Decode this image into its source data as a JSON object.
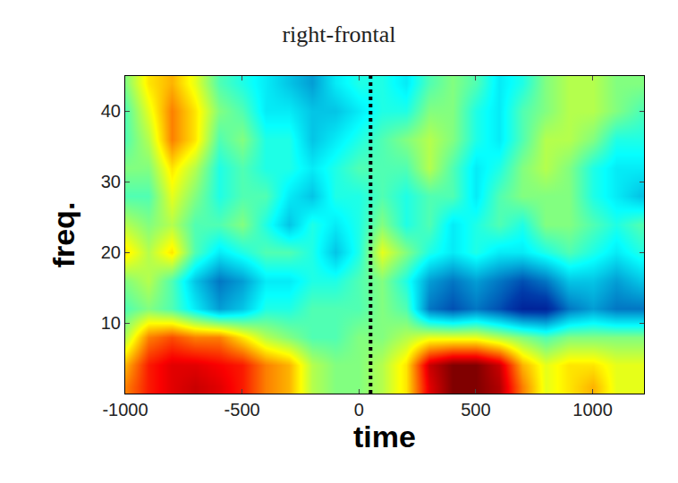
{
  "chart_data": {
    "type": "heatmap",
    "title": "right-frontal",
    "x_label": "time",
    "y_label": "freq.",
    "x": [
      -1000,
      -900,
      -800,
      -700,
      -600,
      -500,
      -400,
      -300,
      -200,
      -100,
      0,
      100,
      200,
      300,
      400,
      500,
      600,
      700,
      800,
      900,
      1000,
      1100,
      1200
    ],
    "y": [
      1,
      4,
      8,
      12,
      16,
      20,
      24,
      28,
      32,
      36,
      40,
      44
    ],
    "z": [
      [
        0.5,
        0.7,
        0.8,
        0.85,
        0.8,
        0.7,
        0.5,
        0.4,
        0.1,
        0,
        0,
        0.1,
        0.3,
        0.8,
        1,
        1,
        0.9,
        0.5,
        0.2,
        0.3,
        0.4,
        0.2,
        0.2
      ],
      [
        0.4,
        0.7,
        0.8,
        0.8,
        0.75,
        0.7,
        0.5,
        0.4,
        0.1,
        0,
        0,
        0.1,
        0.3,
        0.85,
        1,
        1,
        0.85,
        0.4,
        0.2,
        0.3,
        0.3,
        0.2,
        0.2
      ],
      [
        0.1,
        0.5,
        0.6,
        0.5,
        0.5,
        0.3,
        0.1,
        0,
        -0.1,
        -0.1,
        0,
        0,
        0.1,
        0.2,
        0.2,
        0.2,
        0.1,
        0,
        -0.1,
        0,
        0,
        0,
        0
      ],
      [
        -0.1,
        0,
        -0.1,
        -0.3,
        -0.5,
        -0.4,
        -0.2,
        -0.2,
        -0.1,
        -0.1,
        -0.1,
        0,
        -0.1,
        -0.6,
        -0.7,
        -0.6,
        -0.7,
        -0.85,
        -0.85,
        -0.6,
        -0.5,
        -0.6,
        -0.6
      ],
      [
        0,
        0.1,
        -0.1,
        -0.4,
        -0.6,
        -0.5,
        -0.3,
        -0.3,
        -0.2,
        -0.2,
        -0.1,
        0,
        -0.2,
        -0.5,
        -0.6,
        -0.5,
        -0.6,
        -0.7,
        -0.6,
        -0.4,
        -0.4,
        -0.5,
        -0.4
      ],
      [
        0.3,
        0.1,
        0.3,
        -0.1,
        -0.3,
        -0.2,
        -0.1,
        -0.1,
        -0.2,
        -0.4,
        -0.2,
        0.2,
        0,
        -0.2,
        -0.3,
        -0.2,
        -0.3,
        -0.3,
        -0.2,
        -0.1,
        -0.2,
        -0.3,
        -0.2
      ],
      [
        0.1,
        0,
        0.1,
        -0.1,
        -0.1,
        0,
        -0.2,
        -0.4,
        -0.2,
        -0.3,
        -0.2,
        0,
        -0.2,
        -0.1,
        -0.3,
        -0.2,
        -0.1,
        -0.2,
        0,
        0,
        -0.1,
        -0.2,
        -0.1
      ],
      [
        -0.1,
        -0.1,
        0.2,
        0,
        -0.2,
        -0.1,
        -0.1,
        -0.3,
        -0.4,
        -0.2,
        -0.2,
        -0.1,
        -0.2,
        -0.1,
        -0.1,
        -0.3,
        -0.1,
        0,
        0,
        0,
        -0.2,
        -0.3,
        -0.4
      ],
      [
        0,
        0,
        0.3,
        0.1,
        -0.2,
        -0.1,
        -0.2,
        -0.2,
        -0.3,
        -0.2,
        -0.1,
        -0.1,
        -0.1,
        0.1,
        -0.1,
        -0.3,
        -0.2,
        0,
        0.1,
        0,
        -0.2,
        -0.3,
        -0.3
      ],
      [
        -0.1,
        0.1,
        0.5,
        0.3,
        -0.1,
        0,
        -0.2,
        -0.2,
        -0.4,
        -0.3,
        -0.2,
        -0.1,
        0,
        0.1,
        0,
        -0.2,
        -0.3,
        -0.1,
        0.1,
        0.1,
        0,
        -0.2,
        -0.2
      ],
      [
        -0.1,
        0.2,
        0.5,
        0.3,
        0,
        -0.1,
        -0.3,
        -0.3,
        -0.4,
        -0.4,
        -0.3,
        -0.2,
        -0.2,
        0,
        0,
        -0.2,
        -0.3,
        -0.1,
        0,
        0.1,
        0.1,
        0,
        -0.1
      ],
      [
        0,
        0.3,
        0.4,
        0.2,
        -0.1,
        -0.2,
        -0.3,
        -0.4,
        -0.5,
        -0.3,
        -0.2,
        -0.2,
        -0.3,
        -0.1,
        0,
        -0.1,
        -0.3,
        -0.2,
        0,
        0.1,
        0.1,
        0,
        0
      ]
    ],
    "zlim": [
      -1,
      1
    ],
    "color": "Jet",
    "xlim": [
      -1000,
      1220
    ],
    "ylim": [
      0,
      45
    ],
    "xticks": [
      -1000,
      -500,
      0,
      500,
      1000
    ],
    "yticks": [
      10,
      20,
      30,
      40
    ],
    "vline": {
      "x": 50,
      "line_style": "dot"
    },
    "grid": false
  }
}
